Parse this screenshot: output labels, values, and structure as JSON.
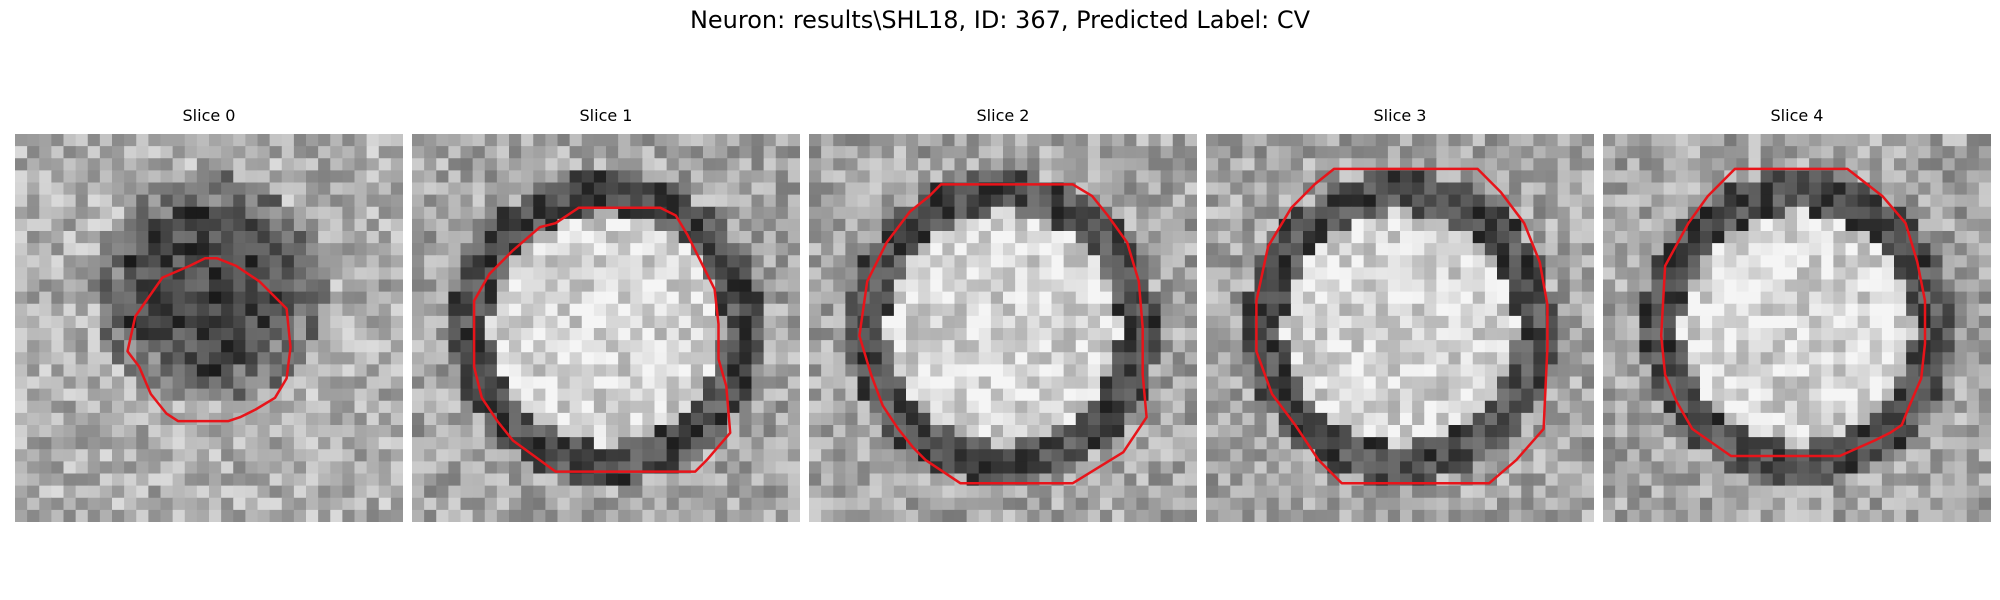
{
  "figure": {
    "title": "Neuron: results\\SHL18, ID: 367, Predicted Label: CV"
  },
  "colors": {
    "contour": "#e8141a",
    "background": "#ffffff"
  },
  "panels": [
    {
      "title": "Slice 0",
      "texture_seed": 11,
      "center": [
        0.5,
        0.4
      ],
      "inner": "dark",
      "contour": [
        [
          0.52,
          0.32
        ],
        [
          0.57,
          0.34
        ],
        [
          0.63,
          0.38
        ],
        [
          0.7,
          0.45
        ],
        [
          0.71,
          0.55
        ],
        [
          0.7,
          0.63
        ],
        [
          0.67,
          0.68
        ],
        [
          0.62,
          0.71
        ],
        [
          0.58,
          0.73
        ],
        [
          0.55,
          0.74
        ],
        [
          0.42,
          0.74
        ],
        [
          0.39,
          0.72
        ],
        [
          0.35,
          0.67
        ],
        [
          0.32,
          0.6
        ],
        [
          0.29,
          0.56
        ],
        [
          0.31,
          0.47
        ],
        [
          0.38,
          0.37
        ],
        [
          0.45,
          0.34
        ],
        [
          0.49,
          0.32
        ]
      ]
    },
    {
      "title": "Slice 1",
      "texture_seed": 23,
      "center": [
        0.5,
        0.5
      ],
      "inner": "bright",
      "contour": [
        [
          0.43,
          0.19
        ],
        [
          0.64,
          0.19
        ],
        [
          0.68,
          0.21
        ],
        [
          0.71,
          0.26
        ],
        [
          0.74,
          0.32
        ],
        [
          0.78,
          0.4
        ],
        [
          0.79,
          0.49
        ],
        [
          0.79,
          0.58
        ],
        [
          0.81,
          0.65
        ],
        [
          0.82,
          0.77
        ],
        [
          0.76,
          0.84
        ],
        [
          0.73,
          0.87
        ],
        [
          0.37,
          0.87
        ],
        [
          0.26,
          0.79
        ],
        [
          0.22,
          0.74
        ],
        [
          0.18,
          0.68
        ],
        [
          0.16,
          0.6
        ],
        [
          0.16,
          0.43
        ],
        [
          0.2,
          0.36
        ],
        [
          0.26,
          0.3
        ],
        [
          0.33,
          0.24
        ],
        [
          0.37,
          0.23
        ]
      ]
    },
    {
      "title": "Slice 2",
      "texture_seed": 37,
      "center": [
        0.5,
        0.5
      ],
      "inner": "bright",
      "contour": [
        [
          0.34,
          0.13
        ],
        [
          0.68,
          0.13
        ],
        [
          0.73,
          0.16
        ],
        [
          0.77,
          0.21
        ],
        [
          0.82,
          0.28
        ],
        [
          0.85,
          0.38
        ],
        [
          0.86,
          0.5
        ],
        [
          0.86,
          0.62
        ],
        [
          0.87,
          0.73
        ],
        [
          0.81,
          0.82
        ],
        [
          0.68,
          0.9
        ],
        [
          0.39,
          0.9
        ],
        [
          0.3,
          0.84
        ],
        [
          0.27,
          0.81
        ],
        [
          0.23,
          0.76
        ],
        [
          0.19,
          0.7
        ],
        [
          0.16,
          0.62
        ],
        [
          0.13,
          0.52
        ],
        [
          0.15,
          0.38
        ],
        [
          0.2,
          0.28
        ],
        [
          0.26,
          0.2
        ],
        [
          0.31,
          0.16
        ]
      ]
    },
    {
      "title": "Slice 3",
      "texture_seed": 53,
      "center": [
        0.5,
        0.5
      ],
      "inner": "bright",
      "contour": [
        [
          0.33,
          0.09
        ],
        [
          0.7,
          0.09
        ],
        [
          0.76,
          0.15
        ],
        [
          0.82,
          0.23
        ],
        [
          0.86,
          0.33
        ],
        [
          0.88,
          0.44
        ],
        [
          0.88,
          0.55
        ],
        [
          0.87,
          0.76
        ],
        [
          0.8,
          0.84
        ],
        [
          0.73,
          0.9
        ],
        [
          0.35,
          0.9
        ],
        [
          0.29,
          0.84
        ],
        [
          0.23,
          0.75
        ],
        [
          0.17,
          0.67
        ],
        [
          0.13,
          0.56
        ],
        [
          0.13,
          0.43
        ],
        [
          0.16,
          0.29
        ],
        [
          0.22,
          0.19
        ],
        [
          0.28,
          0.13
        ]
      ]
    },
    {
      "title": "Slice 4",
      "texture_seed": 71,
      "center": [
        0.5,
        0.5
      ],
      "inner": "bright",
      "contour": [
        [
          0.34,
          0.09
        ],
        [
          0.63,
          0.09
        ],
        [
          0.72,
          0.16
        ],
        [
          0.78,
          0.23
        ],
        [
          0.81,
          0.33
        ],
        [
          0.83,
          0.43
        ],
        [
          0.83,
          0.54
        ],
        [
          0.82,
          0.63
        ],
        [
          0.79,
          0.7
        ],
        [
          0.77,
          0.75
        ],
        [
          0.74,
          0.77
        ],
        [
          0.7,
          0.79
        ],
        [
          0.61,
          0.83
        ],
        [
          0.58,
          0.83
        ],
        [
          0.33,
          0.83
        ],
        [
          0.23,
          0.76
        ],
        [
          0.19,
          0.69
        ],
        [
          0.16,
          0.62
        ],
        [
          0.15,
          0.52
        ],
        [
          0.16,
          0.34
        ],
        [
          0.22,
          0.23
        ],
        [
          0.27,
          0.16
        ]
      ]
    }
  ]
}
